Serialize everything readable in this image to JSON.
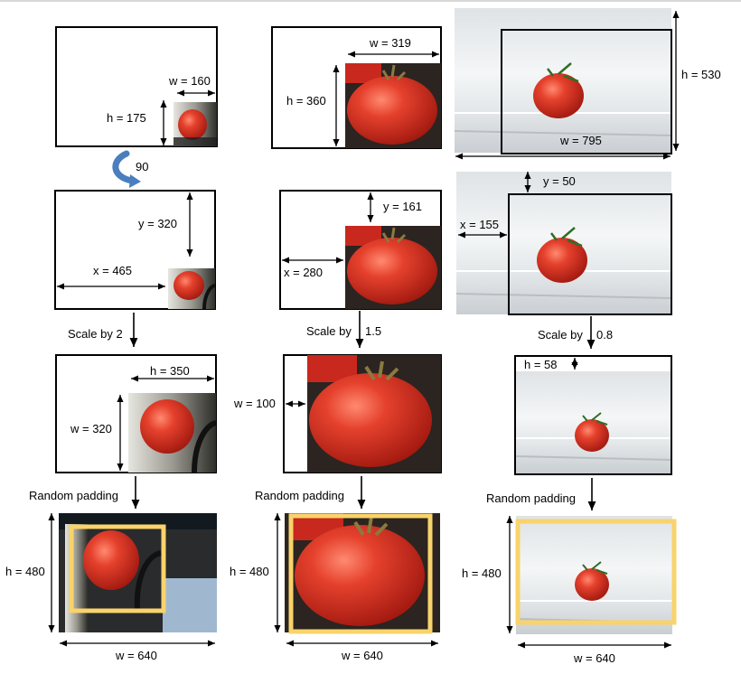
{
  "columns": [
    {
      "orig_w": "w = 160",
      "orig_h": "h = 175",
      "rotate": "90",
      "offset_y": "y = 320",
      "offset_x": "x = 465",
      "scale": "Scale by 2",
      "scaled_h": "h = 350",
      "scaled_w": "w = 320",
      "padding": "Random padding",
      "final_h": "h = 480",
      "final_w": "w = 640"
    },
    {
      "orig_w": "w = 319",
      "orig_h": "h = 360",
      "offset_y": "y = 161",
      "offset_x": "x = 280",
      "scale_prefix": "Scale by",
      "scale_value": "1.5",
      "scaled_w": "w = 100",
      "padding": "Random padding",
      "final_h": "h = 480",
      "final_w": "w = 640"
    },
    {
      "orig_h": "h = 530",
      "orig_w": "w = 795",
      "offset_y": "y = 50",
      "offset_x": "x = 155",
      "scale_prefix": "Scale by",
      "scale_value": "0.8",
      "scaled_h": "h = 58",
      "padding": "Random padding",
      "final_h": "h = 480",
      "final_w": "w = 640"
    }
  ],
  "colors": {
    "box_border": "#000000",
    "crop_highlight": "#f9d36b",
    "rotate_arrow": "#4a7ebf",
    "tomato": "#d8352a",
    "fridge": "#e9ecee",
    "soil": "#2c2420"
  }
}
